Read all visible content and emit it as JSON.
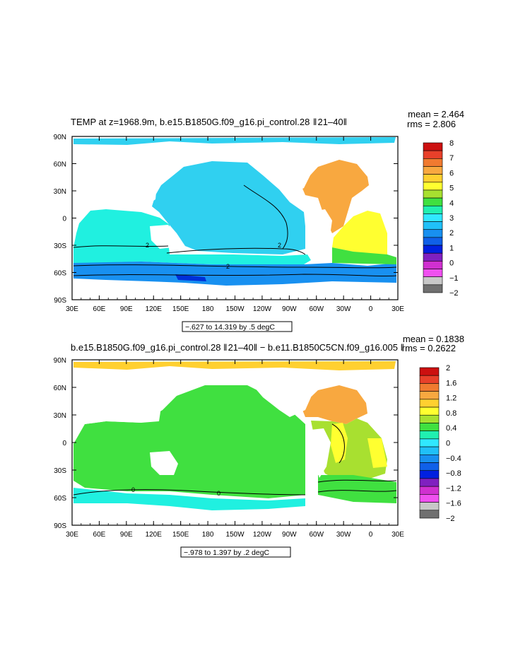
{
  "chart_data": [
    {
      "type": "heatmap",
      "title": "TEMP at z=1968.9m, b.e15.B1850G.f09_g16.pi_control.28  ‖ 21–40‖",
      "stats": {
        "mean": "mean = 2.464",
        "rms": "rms = 2.806"
      },
      "xlabels": [
        "30E",
        "60E",
        "90E",
        "120E",
        "150E",
        "180",
        "150W",
        "120W",
        "90W",
        "60W",
        "30W",
        "0",
        "30E"
      ],
      "ylabels": [
        "90N",
        "60N",
        "30N",
        "0",
        "30S",
        "60S",
        "90S"
      ],
      "range_label": "−.627 to 14.319 by .5 degC",
      "colorbar": {
        "labels": [
          "8",
          "7",
          "6",
          "5",
          "4",
          "3",
          "2",
          "1",
          "0",
          "−1",
          "−2"
        ],
        "colors": [
          "#cc1010",
          "#e8402a",
          "#f07a30",
          "#f8a840",
          "#ffd030",
          "#ffff30",
          "#a8e030",
          "#40e040",
          "#20f0b0",
          "#30e8ff",
          "#20c0f8",
          "#1890f0",
          "#1060e8",
          "#0020e0",
          "#8020c0",
          "#d030d0",
          "#f050f0",
          "#c8c8c8",
          "#707070"
        ]
      },
      "contour_labels": [
        "2",
        "2",
        "2"
      ]
    },
    {
      "type": "heatmap",
      "title": "b.e15.B1850G.f09_g16.pi_control.28 ‖ 21–40‖ − b.e11.B1850C5CN.f09_g16.005 ‖",
      "stats": {
        "mean": "mean = 0.1838",
        "rms": "rms = 0.2622"
      },
      "xlabels": [
        "30E",
        "60E",
        "90E",
        "120E",
        "150E",
        "180",
        "150W",
        "120W",
        "90W",
        "60W",
        "30W",
        "0",
        "30E"
      ],
      "ylabels": [
        "90N",
        "60N",
        "30N",
        "0",
        "30S",
        "60S",
        "90S"
      ],
      "range_label": "−.978 to 1.397 by .2 degC",
      "colorbar": {
        "labels": [
          "2",
          "1.6",
          "1.2",
          "0.8",
          "0.4",
          "0",
          "−0.4",
          "−0.8",
          "−1.2",
          "−1.6",
          "−2"
        ],
        "colors": [
          "#cc1010",
          "#e8402a",
          "#f07a30",
          "#f8a840",
          "#ffd030",
          "#ffff30",
          "#a8e030",
          "#40e040",
          "#20f0b0",
          "#30e8ff",
          "#20c0f8",
          "#1890f0",
          "#1060e8",
          "#0020e0",
          "#8020c0",
          "#d030d0",
          "#f050f0",
          "#c8c8c8",
          "#707070"
        ]
      },
      "contour_labels": [
        "0",
        "0"
      ]
    }
  ]
}
